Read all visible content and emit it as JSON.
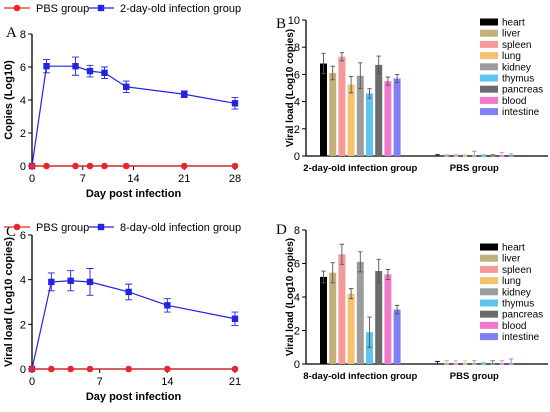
{
  "chart_data": [
    {
      "panel": "A",
      "type": "line",
      "xlabel": "Day post infection",
      "ylabel": "Copies (Log10)",
      "xlim": [
        0,
        28
      ],
      "ylim": [
        0,
        8
      ],
      "xticks": [
        0,
        7,
        14,
        21,
        28
      ],
      "yticks": [
        0,
        2,
        4,
        6,
        8
      ],
      "legend_position": "top",
      "series": [
        {
          "name": "PBS group",
          "color": "#e8262b",
          "marker": "circle",
          "x": [
            0,
            2,
            6,
            8,
            10,
            13,
            21,
            28
          ],
          "y": [
            0,
            0,
            0,
            0,
            0,
            0,
            0,
            0
          ],
          "err": [
            0,
            0,
            0,
            0,
            0,
            0,
            0,
            0
          ]
        },
        {
          "name": "2-day-old infection group",
          "color": "#2224e0",
          "marker": "square",
          "x": [
            0,
            2,
            6,
            8,
            10,
            13,
            21,
            28
          ],
          "y": [
            0,
            6.05,
            6.05,
            5.75,
            5.65,
            4.8,
            4.35,
            3.8
          ],
          "err": [
            0,
            0.4,
            0.55,
            0.35,
            0.35,
            0.35,
            0.2,
            0.35
          ]
        }
      ]
    },
    {
      "panel": "B",
      "type": "bar",
      "xlabel": "",
      "ylabel": "Viral load (Log10 copies)",
      "ylim": [
        0,
        10
      ],
      "yticks": [
        0,
        2,
        4,
        6,
        8,
        10
      ],
      "categories": [
        "2-day-old infection group",
        "PBS group"
      ],
      "legend_position": "right",
      "series": [
        {
          "name": "heart",
          "color": "#000000",
          "values": [
            6.8,
            0
          ],
          "err": [
            0.75,
            0.1
          ]
        },
        {
          "name": "liver",
          "color": "#c2b07a",
          "values": [
            6.1,
            0
          ],
          "err": [
            0.5,
            0.1
          ]
        },
        {
          "name": "spleen",
          "color": "#f59a9a",
          "values": [
            7.3,
            0
          ],
          "err": [
            0.3,
            0.1
          ]
        },
        {
          "name": "lung",
          "color": "#f5c16e",
          "values": [
            5.25,
            0
          ],
          "err": [
            0.6,
            0.1
          ]
        },
        {
          "name": "kidney",
          "color": "#9c9c9c",
          "values": [
            5.9,
            0
          ],
          "err": [
            0.95,
            0.35
          ]
        },
        {
          "name": "thymus",
          "color": "#5fc3f0",
          "values": [
            4.6,
            0
          ],
          "err": [
            0.35,
            0.1
          ]
        },
        {
          "name": "pancreas",
          "color": "#6b6b6b",
          "values": [
            6.7,
            0
          ],
          "err": [
            0.65,
            0.1
          ]
        },
        {
          "name": "blood",
          "color": "#f07ac8",
          "values": [
            5.5,
            0
          ],
          "err": [
            0.3,
            0.25
          ]
        },
        {
          "name": "intestine",
          "color": "#8080f5",
          "values": [
            5.7,
            0
          ],
          "err": [
            0.3,
            0.15
          ]
        }
      ]
    },
    {
      "panel": "C",
      "type": "line",
      "xlabel": "Day post infection",
      "ylabel": "Viral load (Log10 copies)",
      "xlim": [
        0,
        21
      ],
      "ylim": [
        0,
        6
      ],
      "xticks": [
        0,
        7,
        14,
        21
      ],
      "yticks": [
        0,
        2,
        4,
        6
      ],
      "legend_position": "top",
      "series": [
        {
          "name": "PBS group",
          "color": "#e8262b",
          "marker": "circle",
          "x": [
            0,
            2,
            4,
            6,
            10,
            14,
            21
          ],
          "y": [
            0,
            0,
            0,
            0,
            0,
            0,
            0
          ],
          "err": [
            0,
            0,
            0,
            0,
            0,
            0,
            0
          ]
        },
        {
          "name": "8-day-old infection group",
          "color": "#2224e0",
          "marker": "square",
          "x": [
            0,
            2,
            4,
            6,
            10,
            14,
            21
          ],
          "y": [
            0,
            3.9,
            3.95,
            3.9,
            3.45,
            2.85,
            2.25
          ],
          "err": [
            0,
            0.4,
            0.45,
            0.6,
            0.35,
            0.3,
            0.3
          ]
        }
      ]
    },
    {
      "panel": "D",
      "type": "bar",
      "xlabel": "",
      "ylabel": "Viral load (Log10 copies)",
      "ylim": [
        0,
        8
      ],
      "yticks": [
        0,
        2,
        4,
        6,
        8
      ],
      "categories": [
        "8-day-old infection group",
        "PBS group"
      ],
      "legend_position": "right",
      "series": [
        {
          "name": "heart",
          "color": "#000000",
          "values": [
            5.2,
            0
          ],
          "err": [
            0.35,
            0.15
          ]
        },
        {
          "name": "liver",
          "color": "#c2b07a",
          "values": [
            5.45,
            0
          ],
          "err": [
            0.6,
            0.2
          ]
        },
        {
          "name": "spleen",
          "color": "#f59a9a",
          "values": [
            6.55,
            0
          ],
          "err": [
            0.6,
            0.2
          ]
        },
        {
          "name": "lung",
          "color": "#f5c16e",
          "values": [
            4.2,
            0
          ],
          "err": [
            0.3,
            0.2
          ]
        },
        {
          "name": "kidney",
          "color": "#9c9c9c",
          "values": [
            6.1,
            0
          ],
          "err": [
            0.6,
            0.2
          ]
        },
        {
          "name": "thymus",
          "color": "#5fc3f0",
          "values": [
            1.9,
            0
          ],
          "err": [
            0.9,
            0.1
          ]
        },
        {
          "name": "pancreas",
          "color": "#6b6b6b",
          "values": [
            5.55,
            0
          ],
          "err": [
            0.7,
            0.2
          ]
        },
        {
          "name": "blood",
          "color": "#f07ac8",
          "values": [
            5.35,
            0
          ],
          "err": [
            0.3,
            0.2
          ]
        },
        {
          "name": "intestine",
          "color": "#8080f5",
          "values": [
            3.25,
            0
          ],
          "err": [
            0.25,
            0.3
          ]
        }
      ]
    }
  ]
}
